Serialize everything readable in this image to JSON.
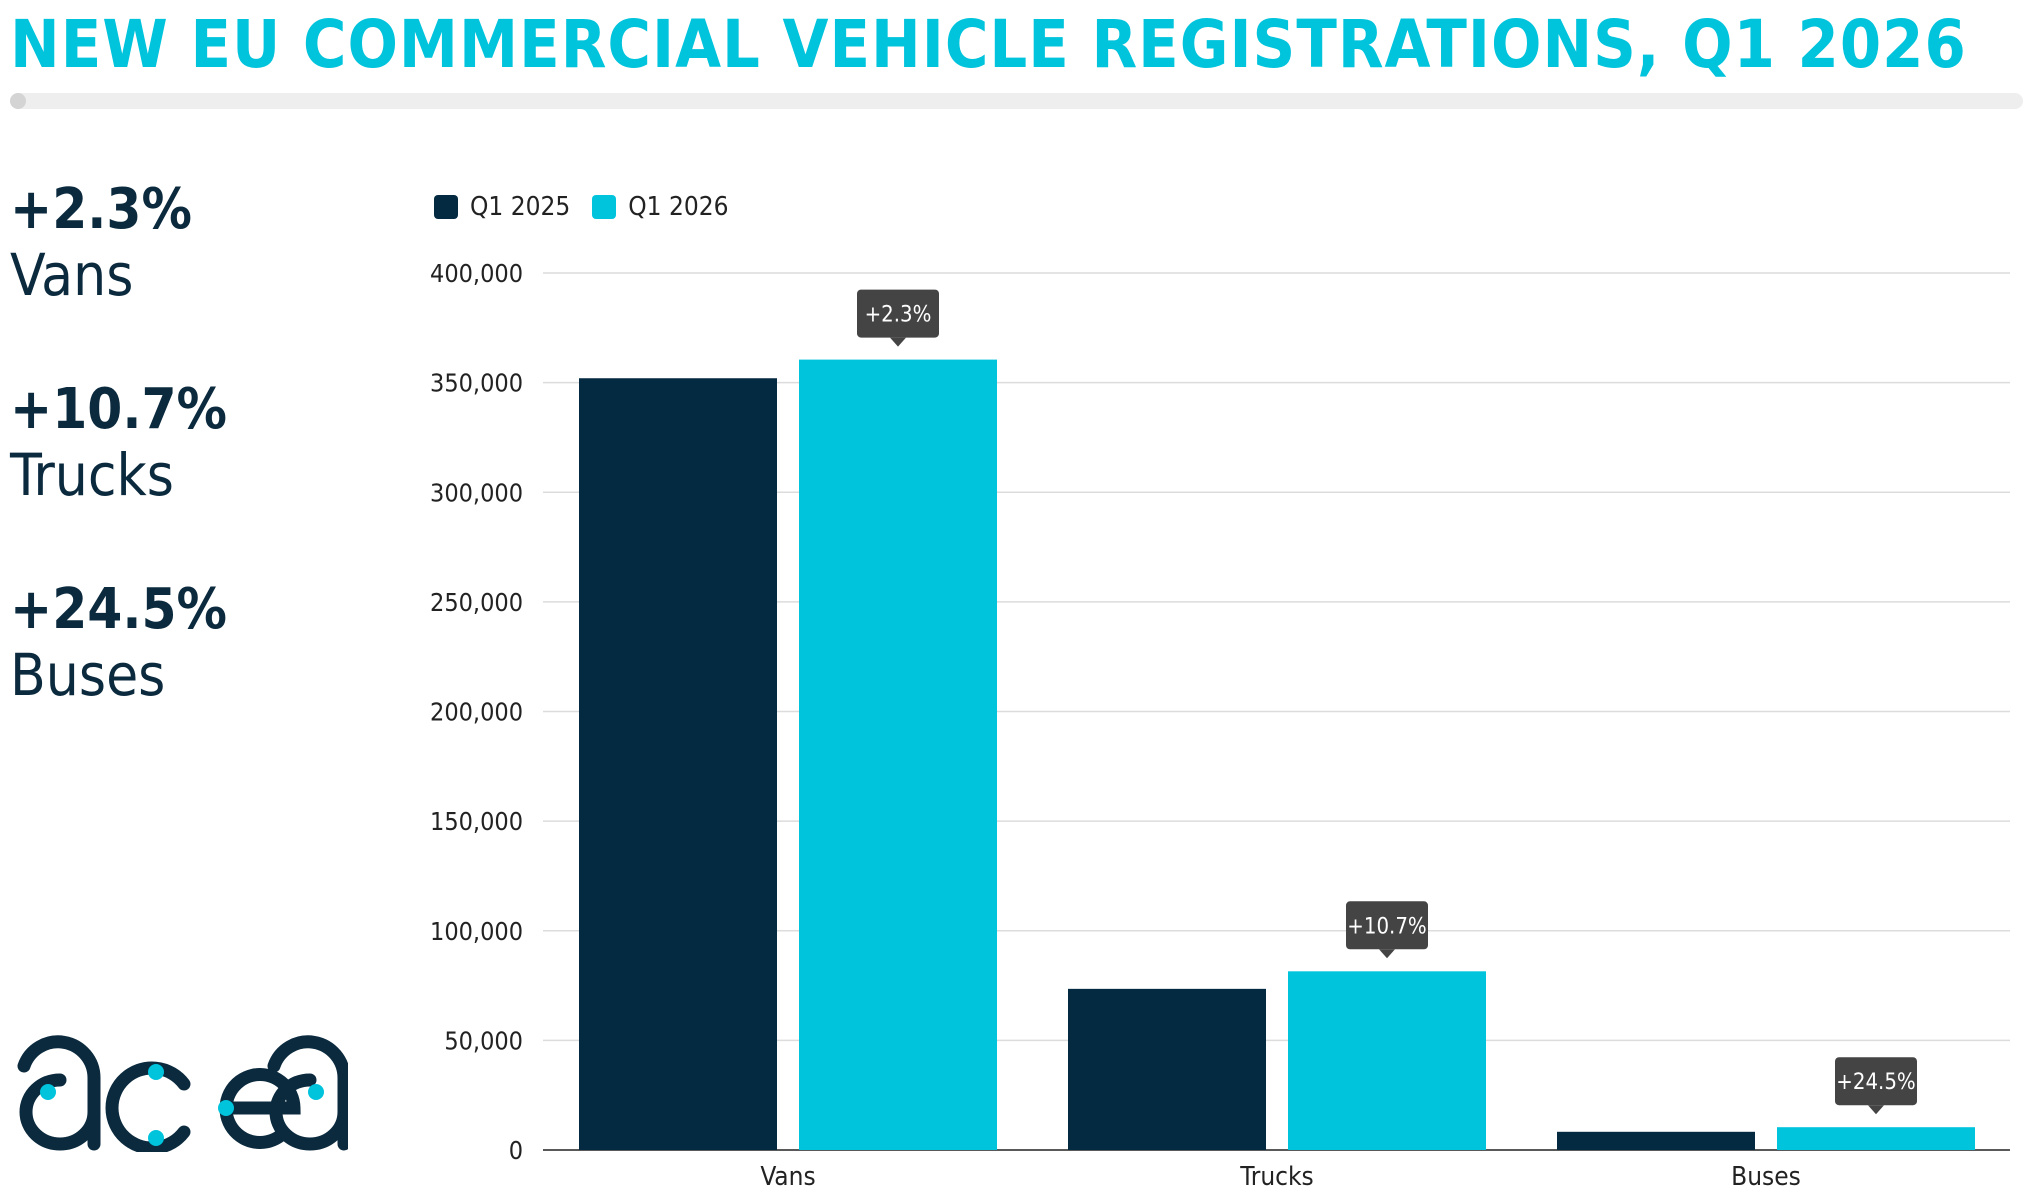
{
  "title": "NEW EU COMMERCIAL VEHICLE REGISTRATIONS, Q1 2026",
  "kpis": [
    {
      "value": "+2.3%",
      "label": "Vans"
    },
    {
      "value": "+10.7%",
      "label": "Trucks"
    },
    {
      "value": "+24.5%",
      "label": "Buses"
    }
  ],
  "logo_text": "acea",
  "colors": {
    "q1_2025": "#032a40",
    "q1_2026": "#00c3dc",
    "title": "#00c3dc",
    "annotation_bg": "#444444"
  },
  "chart_data": {
    "type": "bar",
    "categories": [
      "Vans",
      "Trucks",
      "Buses"
    ],
    "series": [
      {
        "name": "Q1 2025",
        "values": [
          352000,
          73500,
          8300
        ]
      },
      {
        "name": "Q1 2026",
        "values": [
          360500,
          81500,
          10400
        ]
      }
    ],
    "annotations": [
      "+2.3%",
      "+10.7%",
      "+24.5%"
    ],
    "ylim": [
      0,
      400000
    ],
    "yticks": [
      0,
      50000,
      100000,
      150000,
      200000,
      250000,
      300000,
      350000,
      400000
    ],
    "ytick_labels": [
      "0",
      "50,000",
      "100,000",
      "150,000",
      "200,000",
      "250,000",
      "300,000",
      "350,000",
      "400,000"
    ],
    "legend": "top-left",
    "grid": true
  }
}
